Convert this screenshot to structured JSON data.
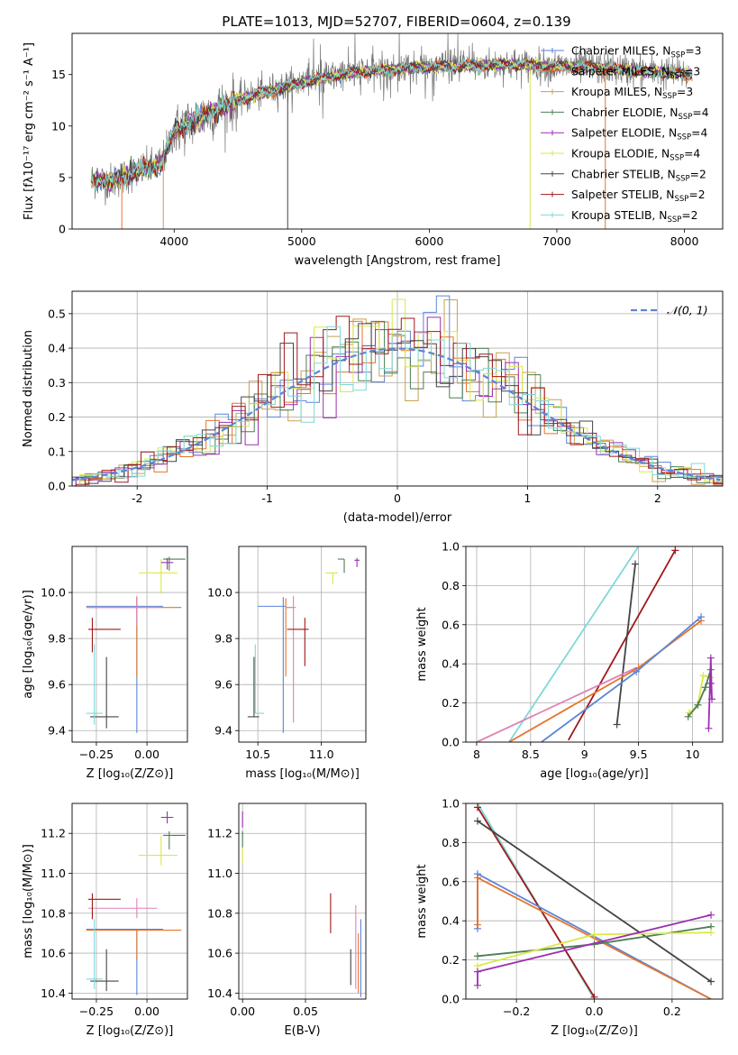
{
  "title": "PLATE=1013, MJD=52707, FIBERID=0604, z=0.139",
  "colors": {
    "chabrier_miles": "#5b85d9",
    "salpeter_miles": "#e5752c",
    "kroupa_miles": "#c8a050",
    "chabrier_elodie": "#4b7f52",
    "salpeter_elodie": "#9b30b0",
    "kroupa_elodie": "#dbe84a",
    "chabrier_stelib": "#444444",
    "salpeter_stelib": "#a01818",
    "kroupa_stelib": "#7fd8d8",
    "data": "#777777",
    "pink": "#e080b8",
    "normal": "#5b85d9"
  },
  "legend_models": [
    {
      "label": "Chabrier MILES, N",
      "sub": "SSP",
      "tail": "=3",
      "color": "chabrier_miles"
    },
    {
      "label": "Salpeter MILES, N",
      "sub": "SSP",
      "tail": "=3",
      "color": "salpeter_miles"
    },
    {
      "label": "Kroupa MILES, N",
      "sub": "SSP",
      "tail": "=3",
      "color": "kroupa_miles"
    },
    {
      "label": "Chabrier ELODIE, N",
      "sub": "SSP",
      "tail": "=4",
      "color": "chabrier_elodie"
    },
    {
      "label": "Salpeter ELODIE, N",
      "sub": "SSP",
      "tail": "=4",
      "color": "salpeter_elodie"
    },
    {
      "label": "Kroupa ELODIE, N",
      "sub": "SSP",
      "tail": "=4",
      "color": "kroupa_elodie"
    },
    {
      "label": "Chabrier STELIB, N",
      "sub": "SSP",
      "tail": "=2",
      "color": "chabrier_stelib"
    },
    {
      "label": "Salpeter STELIB, N",
      "sub": "SSP",
      "tail": "=2",
      "color": "salpeter_stelib"
    },
    {
      "label": "Kroupa STELIB, N",
      "sub": "SSP",
      "tail": "=2",
      "color": "kroupa_stelib"
    }
  ],
  "chart_data": [
    {
      "id": "spectrum",
      "type": "line",
      "title": "PLATE=1013, MJD=52707, FIBERID=0604, z=0.139",
      "xlabel": "wavelength [Angstrom, rest frame]",
      "ylabel": "Flux [fλ10⁻¹⁷ erg cm⁻² s⁻¹ A⁻¹]",
      "xlim": [
        3200,
        8300
      ],
      "ylim": [
        0,
        19
      ],
      "xticks": [
        4000,
        5000,
        6000,
        7000,
        8000
      ],
      "yticks": [
        0,
        5,
        10,
        15
      ],
      "continuum": [
        [
          3350,
          4.8
        ],
        [
          3500,
          4.6
        ],
        [
          3700,
          5.5
        ],
        [
          3900,
          6.4
        ],
        [
          4000,
          9.5
        ],
        [
          4200,
          10.8
        ],
        [
          4500,
          12.5
        ],
        [
          4800,
          13.6
        ],
        [
          5100,
          14.5
        ],
        [
          5400,
          15.2
        ],
        [
          5800,
          15.6
        ],
        [
          6200,
          15.8
        ],
        [
          6600,
          16.0
        ],
        [
          7000,
          15.8
        ],
        [
          7400,
          15.6
        ],
        [
          7700,
          15.3
        ],
        [
          8060,
          15.0
        ]
      ],
      "grid": false
    },
    {
      "id": "residuals",
      "type": "histogram",
      "xlabel": "(data-model)/error",
      "ylabel": "Normed distribution",
      "xlim": [
        -2.5,
        2.5
      ],
      "ylim": [
        0,
        0.565
      ],
      "xticks": [
        -2,
        -1,
        0,
        1,
        2
      ],
      "yticks": [
        0.0,
        0.1,
        0.2,
        0.3,
        0.4,
        0.5
      ],
      "legend": "𝒩(0, 1)",
      "bin_width": 0.1,
      "reference_curve": "normal(0,1)",
      "grid": true
    },
    {
      "id": "age_vs_Z",
      "type": "scatter",
      "xlabel": "Z [log₁₀(Z/Z⊙)]",
      "ylabel": "age  [log₁₀(age/yr)]",
      "xlim": [
        -0.37,
        0.2
      ],
      "ylim": [
        9.35,
        10.2
      ],
      "xticks": [
        -0.25,
        0.0
      ],
      "xticklabels": [
        "−0.25",
        "0.00"
      ],
      "yticks": [
        9.4,
        9.6,
        9.8,
        10.0
      ],
      "grid": true
    },
    {
      "id": "age_vs_mass",
      "type": "scatter",
      "xlabel": "mass [log₁₀(M/M⊙)]",
      "ylabel": "",
      "xlim": [
        10.35,
        11.35
      ],
      "ylim": [
        9.35,
        10.2
      ],
      "xticks": [
        10.5,
        11.0
      ],
      "xticklabels": [
        "10.5",
        "11.0"
      ],
      "yticks": [
        9.4,
        9.6,
        9.8,
        10.0
      ],
      "grid": true
    },
    {
      "id": "weight_vs_age",
      "type": "line",
      "xlabel": "age  [log₁₀(age/yr)]",
      "ylabel": "mass weight",
      "xlim": [
        7.9,
        10.28
      ],
      "ylim": [
        0,
        1
      ],
      "xticks": [
        8.0,
        8.5,
        9.0,
        9.5,
        10.0
      ],
      "yticks": [
        0.0,
        0.2,
        0.4,
        0.6,
        0.8,
        1.0
      ],
      "series": [
        {
          "color": "kroupa_stelib",
          "x": [
            8.3,
            9.5
          ],
          "y": [
            0.0,
            1.0
          ],
          "markers": []
        },
        {
          "color": "salpeter_stelib",
          "x": [
            8.85,
            9.84
          ],
          "y": [
            0.01,
            0.98
          ],
          "markers": [
            1
          ]
        },
        {
          "color": "chabrier_stelib",
          "x": [
            9.3,
            9.47
          ],
          "y": [
            0.09,
            0.91
          ],
          "markers": [
            0,
            1
          ]
        },
        {
          "color": "pink",
          "x": [
            8.0,
            9.48
          ],
          "y": [
            0.0,
            0.38
          ],
          "markers": []
        },
        {
          "color": "salpeter_miles",
          "x": [
            8.3,
            9.5,
            10.08
          ],
          "y": [
            0.0,
            0.38,
            0.62
          ],
          "markers": [
            1,
            2
          ]
        },
        {
          "color": "chabrier_miles",
          "x": [
            8.6,
            9.48,
            10.08
          ],
          "y": [
            0.0,
            0.36,
            0.64
          ],
          "markers": [
            1,
            2
          ]
        },
        {
          "color": "kroupa_elodie",
          "x": [
            9.97,
            10.05,
            10.1,
            10.17
          ],
          "y": [
            0.15,
            0.19,
            0.34,
            0.33
          ],
          "markers": [
            0,
            1,
            2,
            3
          ]
        },
        {
          "color": "chabrier_elodie",
          "x": [
            9.96,
            10.05,
            10.12,
            10.17
          ],
          "y": [
            0.13,
            0.19,
            0.28,
            0.37
          ],
          "markers": [
            0,
            1,
            2,
            3
          ]
        },
        {
          "color": "salpeter_elodie",
          "x": [
            10.15,
            10.17,
            10.18,
            10.17
          ],
          "y": [
            0.07,
            0.43,
            0.22,
            0.3
          ],
          "markers": [
            0,
            1,
            2,
            3
          ]
        }
      ],
      "grid": true
    },
    {
      "id": "mass_vs_Z",
      "type": "scatter",
      "xlabel": "Z [log₁₀(Z/Z⊙)]",
      "ylabel": "mass [log₁₀(M/M⊙)]",
      "xlim": [
        -0.37,
        0.2
      ],
      "ylim": [
        10.37,
        11.35
      ],
      "xticks": [
        -0.25,
        0.0
      ],
      "xticklabels": [
        "−0.25",
        "0.00"
      ],
      "yticks": [
        10.4,
        10.6,
        10.8,
        11.0,
        11.2
      ],
      "grid": true
    },
    {
      "id": "mass_vs_ebv",
      "type": "scatter",
      "xlabel": "E(B-V)",
      "ylabel": "",
      "xlim": [
        -0.003,
        0.098
      ],
      "ylim": [
        10.37,
        11.35
      ],
      "xticks": [
        0.0,
        0.05
      ],
      "xticklabels": [
        "0.00",
        "0.05"
      ],
      "yticks": [
        10.4,
        10.6,
        10.8,
        11.0,
        11.2
      ],
      "grid": true
    },
    {
      "id": "weight_vs_Z",
      "type": "line",
      "xlabel": "Z [log₁₀(Z/Z⊙)]",
      "ylabel": "mass weight",
      "xlim": [
        -0.33,
        0.33
      ],
      "ylim": [
        0,
        1
      ],
      "xticks": [
        -0.2,
        0.0,
        0.2
      ],
      "xticklabels": [
        "−0.2",
        "0.0",
        "0.2"
      ],
      "yticks": [
        0.0,
        0.2,
        0.4,
        0.6,
        0.8,
        1.0
      ],
      "series": [
        {
          "color": "kroupa_stelib",
          "x": [
            -0.3,
            0.0
          ],
          "y": [
            1.0,
            0.0
          ],
          "markers": []
        },
        {
          "color": "salpeter_stelib",
          "x": [
            -0.3,
            0.0
          ],
          "y": [
            0.98,
            0.01
          ],
          "markers": [
            0,
            1
          ]
        },
        {
          "color": "chabrier_stelib",
          "x": [
            -0.3,
            0.3
          ],
          "y": [
            0.91,
            0.09
          ],
          "markers": [
            0,
            1
          ]
        },
        {
          "color": "chabrier_miles",
          "x": [
            -0.3,
            -0.3,
            0.3
          ],
          "y": [
            0.36,
            0.64,
            0.0
          ],
          "markers": [
            0,
            1
          ]
        },
        {
          "color": "salpeter_miles",
          "x": [
            -0.3,
            -0.3,
            0.3
          ],
          "y": [
            0.38,
            0.62,
            0.0
          ],
          "markers": [
            0,
            1
          ]
        },
        {
          "color": "chabrier_elodie",
          "x": [
            -0.3,
            0.0,
            0.3
          ],
          "y": [
            0.22,
            0.28,
            0.37
          ],
          "markers": [
            0,
            1,
            2
          ]
        },
        {
          "color": "kroupa_elodie",
          "x": [
            -0.3,
            0.0,
            0.3
          ],
          "y": [
            0.17,
            0.33,
            0.34
          ],
          "markers": [
            0,
            1,
            2
          ]
        },
        {
          "color": "salpeter_elodie",
          "x": [
            -0.3,
            -0.3,
            0.3
          ],
          "y": [
            0.07,
            0.14,
            0.43
          ],
          "markers": [
            0,
            1,
            2
          ]
        }
      ],
      "grid": true
    }
  ],
  "errorbars": {
    "age_vs_Z": [
      {
        "color": "chabrier_miles",
        "x": -0.05,
        "y": 9.94,
        "xl": 0.25,
        "xr": 0.13,
        "yl": 0.55,
        "yu": 0.04
      },
      {
        "color": "salpeter_miles",
        "x": -0.05,
        "y": 9.935,
        "xl": 0.25,
        "xr": 0.22,
        "yl": 0.3,
        "yu": 0.04
      },
      {
        "color": "pink",
        "x": -0.05,
        "y": 9.935,
        "xl": 0.24,
        "xr": 0.1,
        "yl": 0.08,
        "yu": 0.05
      },
      {
        "color": "salpeter_stelib",
        "x": -0.27,
        "y": 9.84,
        "xl": 0.02,
        "xr": 0.14,
        "yl": 0.1,
        "yu": 0.05
      },
      {
        "color": "chabrier_stelib",
        "x": -0.2,
        "y": 9.46,
        "xl": 0.08,
        "xr": 0.06,
        "yl": 0.05,
        "yu": 0.26
      },
      {
        "color": "kroupa_stelib",
        "x": -0.26,
        "y": 9.475,
        "xl": 0.04,
        "xr": 0.04,
        "yl": 0.05,
        "yu": 0.3
      },
      {
        "color": "kroupa_elodie",
        "x": 0.07,
        "y": 10.085,
        "xl": 0.11,
        "xr": 0.08,
        "yl": 0.09,
        "yu": 0.06
      },
      {
        "color": "chabrier_elodie",
        "x": 0.11,
        "y": 10.145,
        "xl": 0.03,
        "xr": 0.08,
        "yl": 0.05,
        "yu": 0.01
      },
      {
        "color": "salpeter_elodie",
        "x": 0.1,
        "y": 10.13,
        "xl": 0.03,
        "xr": 0.03,
        "yl": 0.03,
        "yu": 0.02
      }
    ],
    "age_vs_mass": [
      {
        "color": "chabrier_miles",
        "x": 10.7,
        "y": 9.94,
        "xl": 0.2,
        "xr": 0.02,
        "yl": 0.55,
        "yu": 0.04
      },
      {
        "color": "salpeter_miles",
        "x": 10.72,
        "y": 9.935,
        "xl": 0.0,
        "xr": 0.05,
        "yl": 0.3,
        "yu": 0.04
      },
      {
        "color": "pink",
        "x": 10.78,
        "y": 9.935,
        "xl": 0.06,
        "xr": 0.02,
        "yl": 0.5,
        "yu": 0.05
      },
      {
        "color": "salpeter_stelib",
        "x": 10.87,
        "y": 9.84,
        "xl": 0.14,
        "xr": 0.03,
        "yl": 0.16,
        "yu": 0.05
      },
      {
        "color": "chabrier_stelib",
        "x": 10.47,
        "y": 9.46,
        "xl": 0.05,
        "xr": 0.04,
        "yl": 0.0,
        "yu": 0.26
      },
      {
        "color": "kroupa_stelib",
        "x": 10.48,
        "y": 9.475,
        "xl": 0.0,
        "xr": 0.07,
        "yl": 0.0,
        "yu": 0.3
      },
      {
        "color": "kroupa_elodie",
        "x": 11.09,
        "y": 10.085,
        "xl": 0.06,
        "xr": 0.04,
        "yl": 0.05,
        "yu": 0.0
      },
      {
        "color": "chabrier_elodie",
        "x": 11.18,
        "y": 10.145,
        "xl": 0.05,
        "xr": 0.0,
        "yl": 0.06,
        "yu": 0.0
      },
      {
        "color": "salpeter_elodie",
        "x": 11.28,
        "y": 10.14,
        "xl": 0.02,
        "xr": 0.02,
        "yl": 0.03,
        "yu": 0.01
      }
    ],
    "mass_vs_Z": [
      {
        "color": "chabrier_miles",
        "x": -0.05,
        "y": 10.72,
        "xl": 0.25,
        "xr": 0.13,
        "yl": 0.33,
        "yu": 0.0
      },
      {
        "color": "salpeter_miles",
        "x": -0.05,
        "y": 10.715,
        "xl": 0.25,
        "xr": 0.22,
        "yl": 0.15,
        "yu": 0.0
      },
      {
        "color": "pink",
        "x": -0.05,
        "y": 10.825,
        "xl": 0.24,
        "xr": 0.1,
        "yl": 0.05,
        "yu": 0.05
      },
      {
        "color": "salpeter_stelib",
        "x": -0.27,
        "y": 10.87,
        "xl": 0.02,
        "xr": 0.14,
        "yl": 0.1,
        "yu": 0.03
      },
      {
        "color": "chabrier_stelib",
        "x": -0.2,
        "y": 10.46,
        "xl": 0.08,
        "xr": 0.06,
        "yl": 0.05,
        "yu": 0.16
      },
      {
        "color": "kroupa_stelib",
        "x": -0.26,
        "y": 10.47,
        "xl": 0.04,
        "xr": 0.04,
        "yl": 0.05,
        "yu": 0.3
      },
      {
        "color": "kroupa_elodie",
        "x": 0.07,
        "y": 11.09,
        "xl": 0.11,
        "xr": 0.08,
        "yl": 0.05,
        "yu": 0.1
      },
      {
        "color": "chabrier_elodie",
        "x": 0.11,
        "y": 11.19,
        "xl": 0.03,
        "xr": 0.08,
        "yl": 0.07,
        "yu": 0.02
      },
      {
        "color": "salpeter_elodie",
        "x": 0.1,
        "y": 11.28,
        "xl": 0.03,
        "xr": 0.03,
        "yl": 0.03,
        "yu": 0.03
      }
    ],
    "mass_vs_ebv": [
      {
        "color": "salpeter_stelib",
        "x": 0.07,
        "y": 10.8,
        "xl": 0.0,
        "xr": 0.0,
        "yl": 0.1,
        "yu": 0.1
      },
      {
        "color": "chabrier_stelib",
        "x": 0.086,
        "y": 10.52,
        "xl": 0.0,
        "xr": 0.0,
        "yl": 0.08,
        "yu": 0.1
      },
      {
        "color": "pink",
        "x": 0.09,
        "y": 10.72,
        "xl": 0.0,
        "xr": 0.0,
        "yl": 0.3,
        "yu": 0.12
      },
      {
        "color": "salpeter_miles",
        "x": 0.092,
        "y": 10.6,
        "xl": 0.0,
        "xr": 0.0,
        "yl": 0.2,
        "yu": 0.1
      },
      {
        "color": "chabrier_miles",
        "x": 0.094,
        "y": 10.58,
        "xl": 0.0,
        "xr": 0.0,
        "yl": 0.2,
        "yu": 0.19
      },
      {
        "color": "salpeter_elodie",
        "x": 0.0,
        "y": 11.27,
        "xl": 0.0,
        "xr": 0.0,
        "yl": 0.04,
        "yu": 0.04
      },
      {
        "color": "kroupa_elodie",
        "x": 0.0,
        "y": 11.09,
        "xl": 0.0,
        "xr": 0.0,
        "yl": 0.04,
        "yu": 0.04
      },
      {
        "color": "chabrier_elodie",
        "x": 0.0,
        "y": 11.17,
        "xl": 0.0,
        "xr": 0.0,
        "yl": 0.04,
        "yu": 0.04
      }
    ]
  }
}
